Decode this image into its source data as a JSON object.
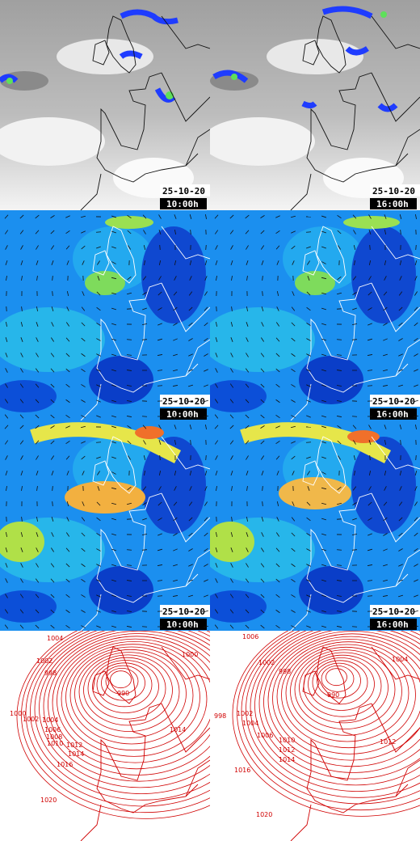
{
  "panels": [
    {
      "date": "25-10-20",
      "time": "10:00h"
    },
    {
      "date": "25-10-20",
      "time": "16:00h"
    },
    {
      "date": "25-10-20",
      "time": "10:00h"
    },
    {
      "date": "25-10-20",
      "time": "16:00h"
    },
    {
      "date": "25-10-20",
      "time": "10:00h"
    },
    {
      "date": "25-10-20",
      "time": "16:00h"
    }
  ],
  "isobar_labels": [
    [
      "1004",
      "1002",
      "998",
      "990",
      "1000",
      "1000",
      "1002",
      "1004",
      "1006",
      "1008",
      "1010",
      "1012",
      "1014",
      "1016",
      "1020",
      "1014"
    ],
    [
      "1006",
      "1002",
      "998",
      "990",
      "1004",
      "998",
      "1002",
      "1004",
      "1006",
      "1010",
      "1012",
      "1014",
      "1016",
      "1020",
      "1012"
    ]
  ]
}
